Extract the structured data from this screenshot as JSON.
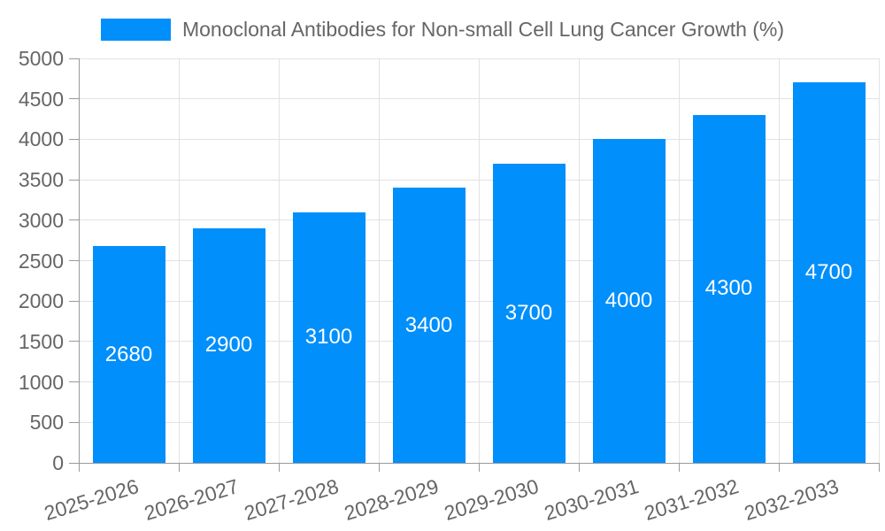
{
  "chart_data": {
    "type": "bar",
    "title": "Monoclonal Antibodies for Non-small Cell Lung Cancer Growth (%)",
    "categories": [
      "2025-2026",
      "2026-2027",
      "2027-2028",
      "2028-2029",
      "2029-2030",
      "2030-2031",
      "2031-2032",
      "2032-2033"
    ],
    "values": [
      2680,
      2900,
      3100,
      3400,
      3700,
      4000,
      4300,
      4700
    ],
    "xlabel": "",
    "ylabel": "",
    "ylim": [
      0,
      5000
    ],
    "y_ticks": [
      0,
      500,
      1000,
      1500,
      2000,
      2500,
      3000,
      3500,
      4000,
      4500,
      5000
    ],
    "grid": true,
    "legend_position": "top",
    "xtick_rotation_deg": -17,
    "colors": {
      "bar": "#008FFB",
      "value_label": "#ffffff",
      "axis_label": "#666666",
      "grid_line": "#e2e2e2",
      "axis_line": "#9a9a9a",
      "background": "#ffffff"
    }
  }
}
